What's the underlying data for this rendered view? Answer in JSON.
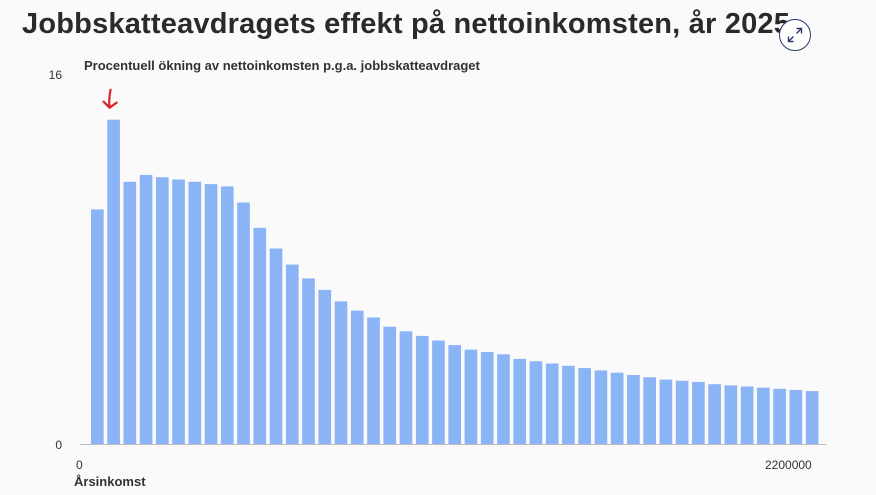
{
  "title": "Jobbskatteavdragets effekt på nettoinkomsten, år 2025",
  "expand_icon": "expand-arrows-icon",
  "colors": {
    "bar": "#8bb4f7",
    "arrow": "#d8232a",
    "axis": "#bbbbbb"
  },
  "chart_data": {
    "type": "bar",
    "title": "Procentuell ökning av nettoinkomsten p.g.a. jobbskatteavdraget",
    "xlabel": "Årsinkomst",
    "ylabel": "",
    "ylim": [
      0,
      16
    ],
    "y_ticks": [
      "16",
      "0"
    ],
    "x_ticks": [
      "0",
      "2200000"
    ],
    "xlim": [
      0,
      2200000
    ],
    "highlight_index": 1,
    "values": [
      10.2,
      14.1,
      11.4,
      11.7,
      11.6,
      11.5,
      11.4,
      11.3,
      11.2,
      10.5,
      9.4,
      8.5,
      7.8,
      7.2,
      6.7,
      6.2,
      5.8,
      5.5,
      5.1,
      4.9,
      4.7,
      4.5,
      4.3,
      4.1,
      4.0,
      3.9,
      3.7,
      3.6,
      3.5,
      3.4,
      3.3,
      3.2,
      3.1,
      3.0,
      2.9,
      2.8,
      2.75,
      2.7,
      2.6,
      2.55,
      2.5,
      2.45,
      2.4,
      2.35,
      2.3
    ]
  }
}
